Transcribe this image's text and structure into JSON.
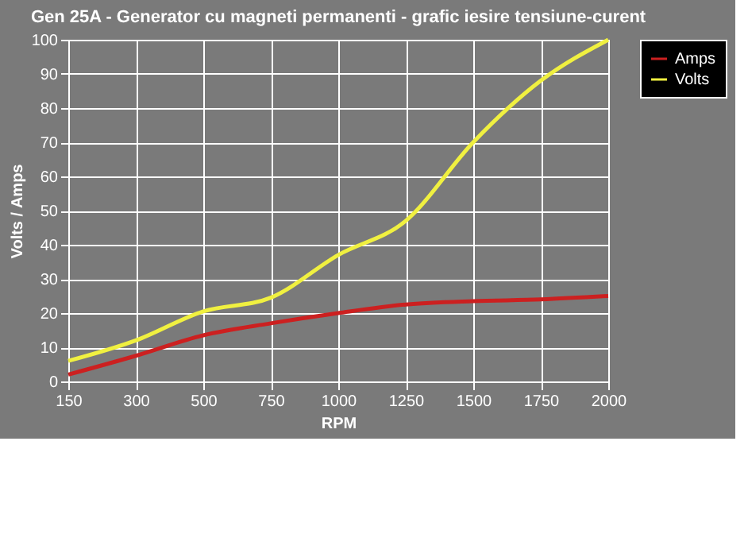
{
  "chart_data": {
    "type": "line",
    "title": "Gen 25A - Generator cu magneti permanenti - grafic iesire tensiune-curent",
    "xlabel": "RPM",
    "ylabel": "Volts / Amps",
    "categories": [
      "150",
      "300",
      "500",
      "750",
      "1000",
      "1250",
      "1500",
      "1750",
      "2000"
    ],
    "series": [
      {
        "name": "Amps",
        "color": "#cc2020",
        "values": [
          2,
          7.5,
          13.5,
          17,
          20,
          22.5,
          23.5,
          24,
          25
        ]
      },
      {
        "name": "Volts",
        "color": "#f0f040",
        "values": [
          6,
          12,
          20.5,
          24.5,
          37,
          47,
          70,
          88,
          100
        ]
      }
    ],
    "ylim": [
      0,
      100
    ],
    "yticks": [
      0,
      10,
      20,
      30,
      40,
      50,
      60,
      70,
      80,
      90,
      100
    ],
    "grid": true,
    "legend": "right",
    "marker": "none",
    "line_style": "solid"
  }
}
